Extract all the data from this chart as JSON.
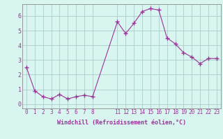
{
  "x": [
    0,
    1,
    2,
    3,
    4,
    5,
    6,
    7,
    8,
    11,
    12,
    13,
    14,
    15,
    16,
    17,
    18,
    19,
    20,
    21,
    22,
    23
  ],
  "y": [
    2.5,
    0.9,
    0.5,
    0.35,
    0.65,
    0.35,
    0.5,
    0.6,
    0.5,
    5.6,
    4.8,
    5.5,
    6.3,
    6.5,
    6.4,
    4.5,
    4.1,
    3.5,
    3.2,
    2.75,
    3.1,
    3.1
  ],
  "line_color": "#993399",
  "marker": "+",
  "marker_size": 4,
  "bg_color": "#d8f5f0",
  "grid_color": "#aacccc",
  "tick_label_color": "#993399",
  "xlabel": "Windchill (Refroidissement éolien,°C)",
  "xticks": [
    0,
    1,
    2,
    3,
    4,
    5,
    6,
    7,
    8,
    11,
    12,
    13,
    14,
    15,
    16,
    17,
    18,
    19,
    20,
    21,
    22,
    23
  ],
  "yticks": [
    0,
    1,
    2,
    3,
    4,
    5,
    6
  ],
  "ylim": [
    -0.3,
    6.8
  ],
  "xlim": [
    -0.5,
    23.5
  ],
  "tick_fontsize": 5.5,
  "xlabel_fontsize": 6.0
}
